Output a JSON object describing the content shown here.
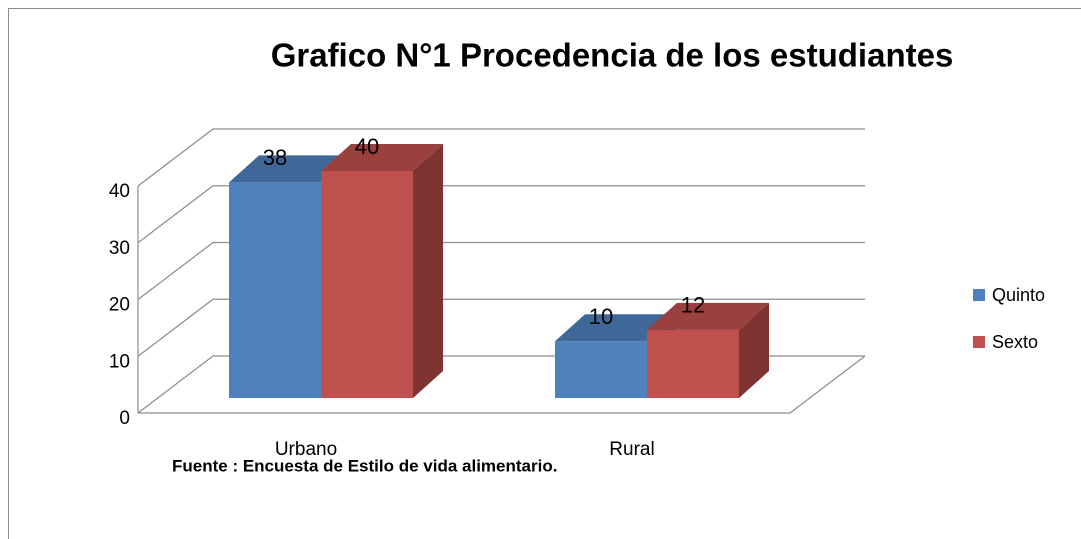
{
  "chart_data": {
    "type": "bar3d",
    "title": "Grafico N°1 Procedencia de los estudiantes",
    "categories": [
      "Urbano",
      "Rural"
    ],
    "series": [
      {
        "name": "Quinto",
        "color": "#4f81bd",
        "values": [
          38,
          10
        ]
      },
      {
        "name": "Sexto",
        "color": "#c0504d",
        "values": [
          40,
          12
        ]
      }
    ],
    "ylim": [
      0,
      40
    ],
    "yticks": [
      0,
      10,
      20,
      30,
      40
    ],
    "grid": true,
    "legend": "right",
    "source": "Fuente : Encuesta de Estilo de vida alimentario."
  }
}
